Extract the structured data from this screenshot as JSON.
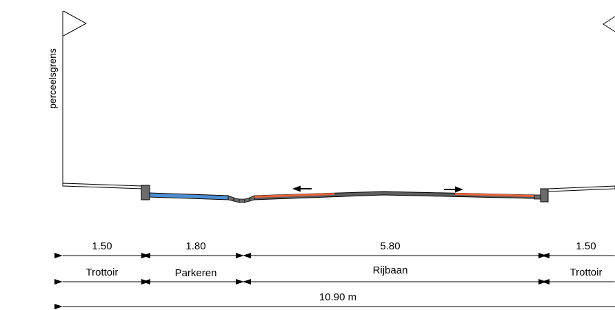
{
  "diagram": {
    "type": "road-cross-section",
    "boundary_label": "perceelsgrens",
    "segments": [
      {
        "id": "trottoir-left",
        "width_label": "1.50",
        "name": "Trottoir"
      },
      {
        "id": "parkeren",
        "width_label": "1.80",
        "name": "Parkeren"
      },
      {
        "id": "rijbaan",
        "width_label": "5.80",
        "name": "Rijbaan"
      },
      {
        "id": "trottoir-right",
        "width_label": "1.50",
        "name": "Trottoir"
      }
    ],
    "total_width_label": "10.90 m",
    "colors": {
      "line": "#000000",
      "parking_surface": "#4f8fd2",
      "bike_lane_surface": "#e8643a",
      "asphalt": "#5e5e5e",
      "curb": "#6b6b6b",
      "sidewalk": "#f2f2f2"
    },
    "direction_arrows": [
      "left",
      "right"
    ]
  }
}
